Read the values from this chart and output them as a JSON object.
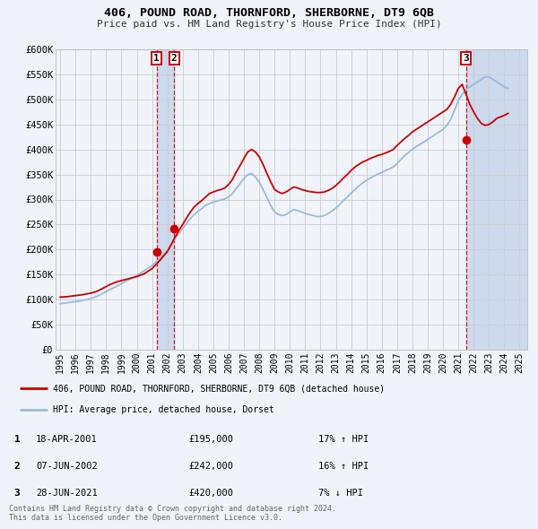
{
  "title": "406, POUND ROAD, THORNFORD, SHERBORNE, DT9 6QB",
  "subtitle": "Price paid vs. HM Land Registry's House Price Index (HPI)",
  "bg_color": "#f0f4fa",
  "plot_bg_color": "#f0f4fa",
  "red_line_color": "#cc0000",
  "blue_line_color": "#99bbdd",
  "marker_color": "#cc0000",
  "grid_color": "#cccccc",
  "ylim": [
    0,
    600000
  ],
  "yticks": [
    0,
    50000,
    100000,
    150000,
    200000,
    250000,
    300000,
    350000,
    400000,
    450000,
    500000,
    550000,
    600000
  ],
  "ytick_labels": [
    "£0",
    "£50K",
    "£100K",
    "£150K",
    "£200K",
    "£250K",
    "£300K",
    "£350K",
    "£400K",
    "£450K",
    "£500K",
    "£550K",
    "£600K"
  ],
  "xlim_start": 1994.7,
  "xlim_end": 2025.5,
  "xtick_years": [
    1995,
    1996,
    1997,
    1998,
    1999,
    2000,
    2001,
    2002,
    2003,
    2004,
    2005,
    2006,
    2007,
    2008,
    2009,
    2010,
    2011,
    2012,
    2013,
    2014,
    2015,
    2016,
    2017,
    2018,
    2019,
    2020,
    2021,
    2022,
    2023,
    2024,
    2025
  ],
  "transaction1_x": 2001.296,
  "transaction1_y": 195000,
  "transaction2_x": 2002.44,
  "transaction2_y": 242000,
  "transaction3_x": 2021.49,
  "transaction3_y": 420000,
  "shade1_x_start": 2001.296,
  "shade1_x_end": 2002.44,
  "shade2_x_start": 2021.49,
  "shade2_x_end": 2025.5,
  "legend_label1": "406, POUND ROAD, THORNFORD, SHERBORNE, DT9 6QB (detached house)",
  "legend_label2": "HPI: Average price, detached house, Dorset",
  "table_rows": [
    {
      "num": "1",
      "date": "18-APR-2001",
      "price": "£195,000",
      "hpi": "17% ↑ HPI"
    },
    {
      "num": "2",
      "date": "07-JUN-2002",
      "price": "£242,000",
      "hpi": "16% ↑ HPI"
    },
    {
      "num": "3",
      "date": "28-JUN-2021",
      "price": "£420,000",
      "hpi": "7% ↓ HPI"
    }
  ],
  "footer": "Contains HM Land Registry data © Crown copyright and database right 2024.\nThis data is licensed under the Open Government Licence v3.0.",
  "red_series_x": [
    1995.0,
    1995.25,
    1995.5,
    1995.75,
    1996.0,
    1996.25,
    1996.5,
    1996.75,
    1997.0,
    1997.25,
    1997.5,
    1997.75,
    1998.0,
    1998.25,
    1998.5,
    1998.75,
    1999.0,
    1999.25,
    1999.5,
    1999.75,
    2000.0,
    2000.25,
    2000.5,
    2000.75,
    2001.0,
    2001.25,
    2001.5,
    2001.75,
    2002.0,
    2002.25,
    2002.5,
    2002.75,
    2003.0,
    2003.25,
    2003.5,
    2003.75,
    2004.0,
    2004.25,
    2004.5,
    2004.75,
    2005.0,
    2005.25,
    2005.5,
    2005.75,
    2006.0,
    2006.25,
    2006.5,
    2006.75,
    2007.0,
    2007.25,
    2007.5,
    2007.75,
    2008.0,
    2008.25,
    2008.5,
    2008.75,
    2009.0,
    2009.25,
    2009.5,
    2009.75,
    2010.0,
    2010.25,
    2010.5,
    2010.75,
    2011.0,
    2011.25,
    2011.5,
    2011.75,
    2012.0,
    2012.25,
    2012.5,
    2012.75,
    2013.0,
    2013.25,
    2013.5,
    2013.75,
    2014.0,
    2014.25,
    2014.5,
    2014.75,
    2015.0,
    2015.25,
    2015.5,
    2015.75,
    2016.0,
    2016.25,
    2016.5,
    2016.75,
    2017.0,
    2017.25,
    2017.5,
    2017.75,
    2018.0,
    2018.25,
    2018.5,
    2018.75,
    2019.0,
    2019.25,
    2019.5,
    2019.75,
    2020.0,
    2020.25,
    2020.5,
    2020.75,
    2021.0,
    2021.25,
    2021.5,
    2021.75,
    2022.0,
    2022.25,
    2022.5,
    2022.75,
    2023.0,
    2023.25,
    2023.5,
    2023.75,
    2024.0,
    2024.25
  ],
  "red_series_y": [
    105000,
    105500,
    106000,
    107000,
    108000,
    109000,
    110000,
    111500,
    113000,
    115000,
    118000,
    122000,
    126000,
    130000,
    133000,
    136000,
    138000,
    140000,
    142000,
    144000,
    146000,
    149000,
    152000,
    157000,
    162000,
    170000,
    178000,
    187000,
    196000,
    210000,
    225000,
    238000,
    250000,
    263000,
    275000,
    285000,
    292000,
    298000,
    305000,
    312000,
    315000,
    318000,
    320000,
    323000,
    330000,
    340000,
    355000,
    368000,
    382000,
    395000,
    400000,
    395000,
    385000,
    370000,
    352000,
    335000,
    320000,
    315000,
    312000,
    315000,
    320000,
    325000,
    323000,
    320000,
    318000,
    316000,
    315000,
    314000,
    314000,
    315000,
    318000,
    322000,
    328000,
    335000,
    343000,
    350000,
    358000,
    365000,
    370000,
    375000,
    378000,
    382000,
    385000,
    388000,
    390000,
    393000,
    396000,
    400000,
    408000,
    415000,
    422000,
    428000,
    435000,
    440000,
    445000,
    450000,
    455000,
    460000,
    465000,
    470000,
    475000,
    480000,
    490000,
    505000,
    522000,
    530000,
    510000,
    490000,
    475000,
    462000,
    452000,
    448000,
    450000,
    455000,
    462000,
    465000,
    468000,
    472000
  ],
  "blue_series_x": [
    1995.0,
    1995.25,
    1995.5,
    1995.75,
    1996.0,
    1996.25,
    1996.5,
    1996.75,
    1997.0,
    1997.25,
    1997.5,
    1997.75,
    1998.0,
    1998.25,
    1998.5,
    1998.75,
    1999.0,
    1999.25,
    1999.5,
    1999.75,
    2000.0,
    2000.25,
    2000.5,
    2000.75,
    2001.0,
    2001.25,
    2001.5,
    2001.75,
    2002.0,
    2002.25,
    2002.5,
    2002.75,
    2003.0,
    2003.25,
    2003.5,
    2003.75,
    2004.0,
    2004.25,
    2004.5,
    2004.75,
    2005.0,
    2005.25,
    2005.5,
    2005.75,
    2006.0,
    2006.25,
    2006.5,
    2006.75,
    2007.0,
    2007.25,
    2007.5,
    2007.75,
    2008.0,
    2008.25,
    2008.5,
    2008.75,
    2009.0,
    2009.25,
    2009.5,
    2009.75,
    2010.0,
    2010.25,
    2010.5,
    2010.75,
    2011.0,
    2011.25,
    2011.5,
    2011.75,
    2012.0,
    2012.25,
    2012.5,
    2012.75,
    2013.0,
    2013.25,
    2013.5,
    2013.75,
    2014.0,
    2014.25,
    2014.5,
    2014.75,
    2015.0,
    2015.25,
    2015.5,
    2015.75,
    2016.0,
    2016.25,
    2016.5,
    2016.75,
    2017.0,
    2017.25,
    2017.5,
    2017.75,
    2018.0,
    2018.25,
    2018.5,
    2018.75,
    2019.0,
    2019.25,
    2019.5,
    2019.75,
    2020.0,
    2020.25,
    2020.5,
    2020.75,
    2021.0,
    2021.25,
    2021.5,
    2021.75,
    2022.0,
    2022.25,
    2022.5,
    2022.75,
    2023.0,
    2023.25,
    2023.5,
    2023.75,
    2024.0,
    2024.25
  ],
  "blue_series_y": [
    92000,
    93000,
    94000,
    95000,
    96000,
    97000,
    98500,
    100000,
    102000,
    105000,
    108000,
    112000,
    116000,
    120000,
    124000,
    128000,
    132000,
    136000,
    140000,
    144000,
    148000,
    153000,
    158000,
    163000,
    168000,
    175000,
    182000,
    190000,
    198000,
    210000,
    222000,
    232000,
    242000,
    252000,
    262000,
    270000,
    276000,
    282000,
    288000,
    292000,
    295000,
    297000,
    299000,
    301000,
    305000,
    312000,
    322000,
    332000,
    342000,
    350000,
    352000,
    345000,
    335000,
    320000,
    304000,
    288000,
    275000,
    270000,
    268000,
    270000,
    275000,
    280000,
    278000,
    275000,
    272000,
    270000,
    268000,
    266000,
    266000,
    268000,
    272000,
    277000,
    283000,
    290000,
    298000,
    305000,
    313000,
    320000,
    327000,
    333000,
    338000,
    343000,
    347000,
    351000,
    354000,
    358000,
    361000,
    365000,
    372000,
    380000,
    388000,
    394000,
    400000,
    406000,
    410000,
    415000,
    420000,
    425000,
    430000,
    435000,
    440000,
    448000,
    460000,
    478000,
    498000,
    510000,
    520000,
    525000,
    530000,
    535000,
    540000,
    545000,
    545000,
    540000,
    535000,
    530000,
    525000,
    522000
  ]
}
